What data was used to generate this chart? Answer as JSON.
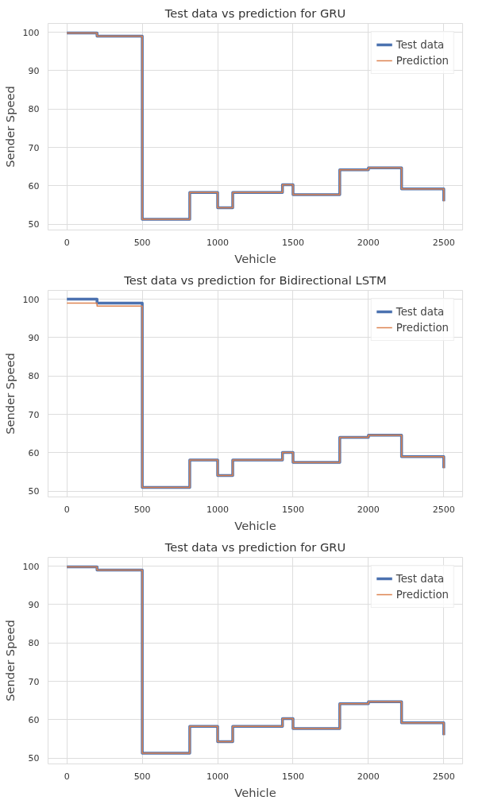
{
  "chart_data": [
    {
      "type": "step",
      "title": "Test data vs prediction for GRU",
      "xlabel": "Vehicle",
      "ylabel": "Sender Speed",
      "x": [
        0,
        200,
        500,
        815,
        1000,
        1100,
        1430,
        1500,
        1810,
        2000,
        2220,
        2500
      ],
      "series": [
        {
          "name": "Test data",
          "color": "#4c72b0",
          "values": [
            99.8,
            99.0,
            51.3,
            58.3,
            54.3,
            58.3,
            60.3,
            57.7,
            64.2,
            64.7,
            59.2,
            56
          ]
        },
        {
          "name": "Prediction",
          "color": "#dd8452",
          "values": [
            99.8,
            99.0,
            51.3,
            58.3,
            54.3,
            58.3,
            60.3,
            57.7,
            64.2,
            64.7,
            59.2,
            56
          ]
        }
      ],
      "xlim": [
        -125,
        2625
      ],
      "xticks": [
        0,
        500,
        1000,
        1500,
        2000,
        2500
      ],
      "ylim": [
        48.5,
        102.3
      ],
      "yticks": [
        50,
        60,
        70,
        80,
        90,
        100
      ],
      "grid": true,
      "legend": "top right"
    },
    {
      "type": "step",
      "title": "Test data vs prediction for Bidirectional LSTM",
      "xlabel": "Vehicle",
      "ylabel": "Sender Speed",
      "x": [
        0,
        200,
        500,
        815,
        1000,
        1100,
        1430,
        1500,
        1810,
        2000,
        2220,
        2500
      ],
      "series": [
        {
          "name": "Test data",
          "color": "#4c72b0",
          "values": [
            100.0,
            99.0,
            51.0,
            58.1,
            54.1,
            58.1,
            60.1,
            57.5,
            64.0,
            64.6,
            59.0,
            56
          ]
        },
        {
          "name": "Prediction",
          "color": "#dd8452",
          "values": [
            99.0,
            98.2,
            51.0,
            58.1,
            54.1,
            58.1,
            60.1,
            57.5,
            64.0,
            64.6,
            59.0,
            56
          ]
        }
      ],
      "xlim": [
        -125,
        2625
      ],
      "xticks": [
        0,
        500,
        1000,
        1500,
        2000,
        2500
      ],
      "ylim": [
        48.5,
        102.3
      ],
      "yticks": [
        50,
        60,
        70,
        80,
        90,
        100
      ],
      "grid": true,
      "legend": "top right"
    },
    {
      "type": "step",
      "title": "Test data vs prediction for GRU",
      "xlabel": "Vehicle",
      "ylabel": "Sender Speed",
      "x": [
        0,
        200,
        500,
        815,
        1000,
        1100,
        1430,
        1500,
        1810,
        2000,
        2220,
        2500
      ],
      "series": [
        {
          "name": "Test data",
          "color": "#4c72b0",
          "values": [
            99.8,
            99.0,
            51.3,
            58.3,
            54.3,
            58.3,
            60.3,
            57.7,
            64.2,
            64.7,
            59.2,
            56
          ]
        },
        {
          "name": "Prediction",
          "color": "#dd8452",
          "values": [
            99.8,
            99.0,
            51.3,
            58.3,
            54.3,
            58.3,
            60.3,
            57.7,
            64.2,
            64.7,
            59.2,
            56
          ]
        }
      ],
      "xlim": [
        -125,
        2625
      ],
      "xticks": [
        0,
        500,
        1000,
        1500,
        2000,
        2500
      ],
      "ylim": [
        48.5,
        102.3
      ],
      "yticks": [
        50,
        60,
        70,
        80,
        90,
        100
      ],
      "grid": true,
      "legend": "top right"
    }
  ]
}
